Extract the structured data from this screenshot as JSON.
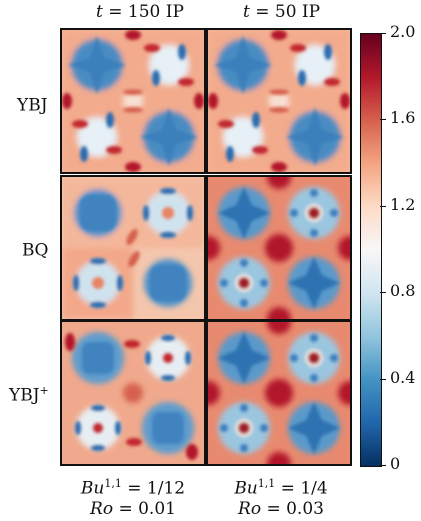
{
  "columns": [
    {
      "title_var": "t",
      "title_rest": "= 150 IP",
      "foot_bu_var": "Bu",
      "foot_bu_sup": "1,1",
      "foot_bu_val": "= 1/12",
      "foot_ro_var": "Ro",
      "foot_ro_val": "= 0.01"
    },
    {
      "title_var": "t",
      "title_rest": "= 50 IP",
      "foot_bu_var": "Bu",
      "foot_bu_sup": "1,1",
      "foot_bu_val": "= 1/4",
      "foot_ro_var": "Ro",
      "foot_ro_val": "= 0.03"
    }
  ],
  "rows": [
    {
      "label": "YBJ",
      "label_sup": ""
    },
    {
      "label": "BQ",
      "label_sup": ""
    },
    {
      "label": "YBJ",
      "label_sup": "+"
    }
  ],
  "colorbar": {
    "ticks": [
      "2.0",
      "1.6",
      "1.2",
      "0.8",
      "0.4",
      "0"
    ],
    "min": 0,
    "max": 2.0,
    "colors": [
      "#053061",
      "#2166ac",
      "#4393c3",
      "#92c5de",
      "#d1e5f0",
      "#f7f7f7",
      "#fddbc7",
      "#f4a582",
      "#d6604d",
      "#b2182b",
      "#67001f"
    ]
  }
}
